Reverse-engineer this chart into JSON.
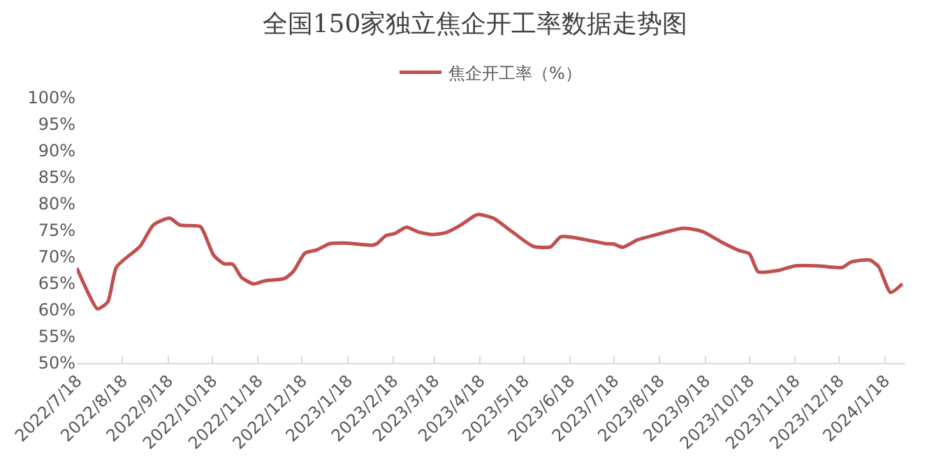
{
  "chart_data": {
    "type": "line",
    "title": "全国150家独立焦企开工率数据走势图",
    "legend": "top",
    "grid": false,
    "marker": "none",
    "line_style": "solid",
    "x": [
      "2022-07-18",
      "2022-07-24",
      "2022-08-01",
      "2022-08-08",
      "2022-08-14",
      "2022-08-30",
      "2022-09-08",
      "2022-09-19",
      "2022-09-26",
      "2022-10-10",
      "2022-10-13",
      "2022-10-19",
      "2022-10-26",
      "2022-11-01",
      "2022-11-07",
      "2022-11-15",
      "2022-11-23",
      "2022-12-06",
      "2022-12-12",
      "2022-12-20",
      "2022-12-28",
      "2023-01-06",
      "2023-01-16",
      "2023-01-25",
      "2023-02-04",
      "2023-02-07",
      "2023-02-13",
      "2023-02-19",
      "2023-02-27",
      "2023-03-07",
      "2023-03-17",
      "2023-03-26",
      "2023-04-05",
      "2023-04-14",
      "2023-04-17",
      "2023-04-27",
      "2023-05-10",
      "2023-05-24",
      "2023-06-05",
      "2023-06-12",
      "2023-06-26",
      "2023-07-12",
      "2023-07-18",
      "2023-07-24",
      "2023-08-03",
      "2023-08-16",
      "2023-09-03",
      "2023-09-16",
      "2023-09-29",
      "2023-10-11",
      "2023-10-18",
      "2023-10-24",
      "2023-11-06",
      "2023-11-18",
      "2023-12-04",
      "2023-12-20",
      "2023-12-26",
      "2024-01-08",
      "2024-01-14",
      "2024-01-22",
      "2024-01-30"
    ],
    "series": [
      {
        "name": "焦企开工率（%）",
        "color": "#c0504d",
        "values": [
          67.9,
          64.2,
          60.2,
          61.5,
          68.1,
          72,
          76,
          77.3,
          76,
          75.7,
          74.2,
          70.3,
          68.7,
          68.6,
          66.1,
          64.9,
          65.5,
          65.9,
          67.2,
          70.7,
          71.3,
          72.5,
          72.6,
          72.4,
          72.2,
          72.5,
          74,
          74.4,
          75.6,
          74.7,
          74.2,
          74.6,
          76,
          77.7,
          78,
          77.3,
          74.7,
          72,
          71.9,
          73.8,
          73.4,
          72.5,
          72.4,
          71.8,
          73.2,
          74.2,
          75.4,
          74.8,
          72.8,
          71.2,
          70.6,
          67.2,
          67.4,
          68.3,
          68.3,
          68,
          69,
          69.4,
          68.1,
          63.3,
          64.9
        ]
      }
    ],
    "xlim": [
      "2022-07-18",
      "2024-02-01"
    ],
    "xticks": [
      {
        "value": "2022-07-18",
        "label": "2022/7/18"
      },
      {
        "value": "2022-08-18",
        "label": "2022/8/18"
      },
      {
        "value": "2022-09-18",
        "label": "2022/9/18"
      },
      {
        "value": "2022-10-18",
        "label": "2022/10/18"
      },
      {
        "value": "2022-11-18",
        "label": "2022/11/18"
      },
      {
        "value": "2022-12-18",
        "label": "2022/12/18"
      },
      {
        "value": "2023-01-18",
        "label": "2023/1/18"
      },
      {
        "value": "2023-02-18",
        "label": "2023/2/18"
      },
      {
        "value": "2023-03-18",
        "label": "2023/3/18"
      },
      {
        "value": "2023-04-18",
        "label": "2023/4/18"
      },
      {
        "value": "2023-05-18",
        "label": "2023/5/18"
      },
      {
        "value": "2023-06-18",
        "label": "2023/6/18"
      },
      {
        "value": "2023-07-18",
        "label": "2023/7/18"
      },
      {
        "value": "2023-08-18",
        "label": "2023/8/18"
      },
      {
        "value": "2023-09-18",
        "label": "2023/9/18"
      },
      {
        "value": "2023-10-18",
        "label": "2023/10/18"
      },
      {
        "value": "2023-11-18",
        "label": "2023/11/18"
      },
      {
        "value": "2023-12-18",
        "label": "2023/12/18"
      },
      {
        "value": "2024-01-18",
        "label": "2024/1/18"
      }
    ],
    "ylim": [
      50,
      100
    ],
    "yticks": [
      {
        "value": 50,
        "label": "50%"
      },
      {
        "value": 55,
        "label": "55%"
      },
      {
        "value": 60,
        "label": "60%"
      },
      {
        "value": 65,
        "label": "65%"
      },
      {
        "value": 70,
        "label": "70%"
      },
      {
        "value": 75,
        "label": "75%"
      },
      {
        "value": 80,
        "label": "80%"
      },
      {
        "value": 85,
        "label": "85%"
      },
      {
        "value": 90,
        "label": "90%"
      },
      {
        "value": 95,
        "label": "95%"
      },
      {
        "value": 100,
        "label": "100%"
      }
    ]
  }
}
